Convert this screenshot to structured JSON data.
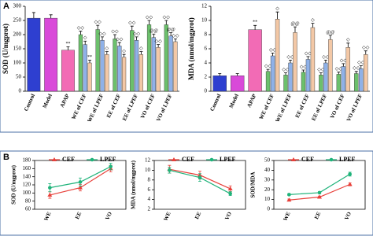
{
  "panel_labels": [
    "A",
    "B"
  ],
  "chart_data": [
    {
      "type": "grouped-bar",
      "ylabel": "SOD (U/mgprot)",
      "ylim": [
        0,
        300
      ],
      "yticks": [
        0,
        50,
        100,
        150,
        200,
        250,
        300
      ],
      "categories": [
        "Control",
        "Model",
        "APAP",
        "WE of CEF",
        "WE of LPEF",
        "EE of CEF",
        "EE of LPEF",
        "VO of CEF",
        "VO of LPEF"
      ],
      "groups": [
        {
          "values": [
            258
          ],
          "errors": [
            20
          ],
          "colors": [
            "#2e3fd0"
          ],
          "marks": [
            null
          ]
        },
        {
          "values": [
            258
          ],
          "errors": [
            12
          ],
          "colors": [
            "#d94ad9"
          ],
          "marks": [
            null
          ]
        },
        {
          "values": [
            145
          ],
          "errors": [
            12
          ],
          "colors": [
            "#f26bb5"
          ],
          "marks": [
            "**"
          ]
        },
        {
          "values": [
            200,
            165,
            100
          ],
          "errors": [
            12,
            12,
            10
          ],
          "colors": [
            "#6cc06c",
            "#8fb1e8",
            "#f3c8a6"
          ],
          "marks": [
            "◇◇",
            "◇",
            "**"
          ]
        },
        {
          "values": [
            218,
            180,
            130
          ],
          "errors": [
            15,
            12,
            10
          ],
          "colors": [
            "#6cc06c",
            "#8fb1e8",
            "#f3c8a6"
          ],
          "marks": [
            "◇◇",
            "◇◇",
            "◇"
          ]
        },
        {
          "values": [
            185,
            160,
            120
          ],
          "errors": [
            15,
            12,
            10
          ],
          "colors": [
            "#6cc06c",
            "#8fb1e8",
            "#f3c8a6"
          ],
          "marks": [
            "◇◇",
            "◇◇",
            "◇"
          ]
        },
        {
          "values": [
            215,
            180,
            130
          ],
          "errors": [
            15,
            12,
            10
          ],
          "colors": [
            "#6cc06c",
            "#8fb1e8",
            "#f3c8a6"
          ],
          "marks": [
            "◇◇",
            "◇◇",
            "◇"
          ]
        },
        {
          "values": [
            235,
            190,
            155
          ],
          "errors": [
            15,
            12,
            10
          ],
          "colors": [
            "#6cc06c",
            "#8fb1e8",
            "#f3c8a6"
          ],
          "marks": [
            "◇◇",
            "@@",
            "◇◇"
          ]
        },
        {
          "values": [
            235,
            195,
            175
          ],
          "errors": [
            15,
            12,
            10
          ],
          "colors": [
            "#6cc06c",
            "#8fb1e8",
            "#f3c8a6"
          ],
          "marks": [
            "◇◇",
            "@@",
            "◇◇"
          ]
        }
      ]
    },
    {
      "type": "grouped-bar",
      "ylabel": "MDA (nmol/mgprot)",
      "ylim": [
        0,
        12
      ],
      "yticks": [
        0,
        2,
        4,
        6,
        8,
        10,
        12
      ],
      "categories": [
        "Control",
        "Model",
        "APAP",
        "WE of CEF",
        "WE of LPEF",
        "EE of CEF",
        "EE of LPEF",
        "VO of CEF",
        "VO of LPEF"
      ],
      "groups": [
        {
          "values": [
            2.2
          ],
          "errors": [
            0.3
          ],
          "colors": [
            "#2e3fd0"
          ],
          "marks": [
            null
          ]
        },
        {
          "values": [
            2.2
          ],
          "errors": [
            0.3
          ],
          "colors": [
            "#d94ad9"
          ],
          "marks": [
            null
          ]
        },
        {
          "values": [
            8.7
          ],
          "errors": [
            0.6
          ],
          "colors": [
            "#f26bb5"
          ],
          "marks": [
            "**"
          ]
        },
        {
          "values": [
            2.8,
            5.0,
            10.2
          ],
          "errors": [
            0.3,
            0.4,
            1.0
          ],
          "colors": [
            "#6cc06c",
            "#8fb1e8",
            "#f3c8a6"
          ],
          "marks": [
            "◇◇",
            "◇◇",
            "◇"
          ]
        },
        {
          "values": [
            2.3,
            4.0,
            8.3
          ],
          "errors": [
            0.3,
            0.4,
            0.8
          ],
          "colors": [
            "#6cc06c",
            "#8fb1e8",
            "#f3c8a6"
          ],
          "marks": [
            "◇◇",
            "◇◇",
            "@@"
          ]
        },
        {
          "values": [
            2.7,
            4.5,
            9.0
          ],
          "errors": [
            0.3,
            0.4,
            0.6
          ],
          "colors": [
            "#6cc06c",
            "#8fb1e8",
            "#f3c8a6"
          ],
          "marks": [
            "◇◇",
            "◇◇",
            "◇"
          ]
        },
        {
          "values": [
            2.3,
            4.0,
            7.3
          ],
          "errors": [
            0.3,
            0.4,
            0.6
          ],
          "colors": [
            "#6cc06c",
            "#8fb1e8",
            "#f3c8a6"
          ],
          "marks": [
            "◇◇",
            "◇◇",
            "@@"
          ]
        },
        {
          "values": [
            2.4,
            3.5,
            6.2
          ],
          "errors": [
            0.3,
            0.4,
            0.6
          ],
          "colors": [
            "#6cc06c",
            "#8fb1e8",
            "#f3c8a6"
          ],
          "marks": [
            "◇◇",
            "◇◇",
            "◇"
          ]
        },
        {
          "values": [
            2.5,
            3.2,
            5.2
          ],
          "errors": [
            0.3,
            0.4,
            0.5
          ],
          "colors": [
            "#6cc06c",
            "#8fb1e8",
            "#f3c8a6"
          ],
          "marks": [
            "◇◇",
            "◇◇",
            "◇◇"
          ]
        }
      ]
    },
    {
      "type": "line",
      "ylabel": "SOD (U/mgprot)",
      "categories": [
        "WE",
        "EE",
        "VO"
      ],
      "ylim": [
        60,
        180
      ],
      "yticks": [
        60,
        80,
        100,
        120,
        140,
        160,
        180
      ],
      "series": [
        {
          "name": "CEF",
          "color": "#e8403a",
          "values": [
            95,
            113,
            160
          ],
          "errors": [
            8,
            8,
            8
          ]
        },
        {
          "name": "LPEF",
          "color": "#1fb37a",
          "values": [
            113,
            127,
            165
          ],
          "errors": [
            10,
            10,
            8
          ]
        }
      ]
    },
    {
      "type": "line",
      "ylabel": "MDA (nmol/mgprot)",
      "categories": [
        "WE",
        "EE",
        "VO"
      ],
      "ylim": [
        2,
        12
      ],
      "yticks": [
        2,
        4,
        6,
        8,
        10,
        12
      ],
      "series": [
        {
          "name": "CEF",
          "color": "#e8403a",
          "values": [
            10.2,
            9.0,
            6.2
          ],
          "errors": [
            0.8,
            0.8,
            0.6
          ]
        },
        {
          "name": "LPEF",
          "color": "#1fb37a",
          "values": [
            10.0,
            8.5,
            5.2
          ],
          "errors": [
            0.6,
            0.8,
            0.4
          ]
        }
      ]
    },
    {
      "type": "line",
      "ylabel": "SOD/MDA",
      "categories": [
        "WE",
        "EE",
        "VO"
      ],
      "ylim": [
        0,
        50
      ],
      "yticks": [
        0,
        10,
        20,
        30,
        40,
        50
      ],
      "series": [
        {
          "name": "CEF",
          "color": "#e8403a",
          "values": [
            9.5,
            12.5,
            25.5
          ],
          "errors": [
            1,
            1,
            1.5
          ]
        },
        {
          "name": "LPEF",
          "color": "#1fb37a",
          "values": [
            15,
            17,
            36
          ],
          "errors": [
            1,
            1,
            2
          ]
        }
      ]
    }
  ]
}
